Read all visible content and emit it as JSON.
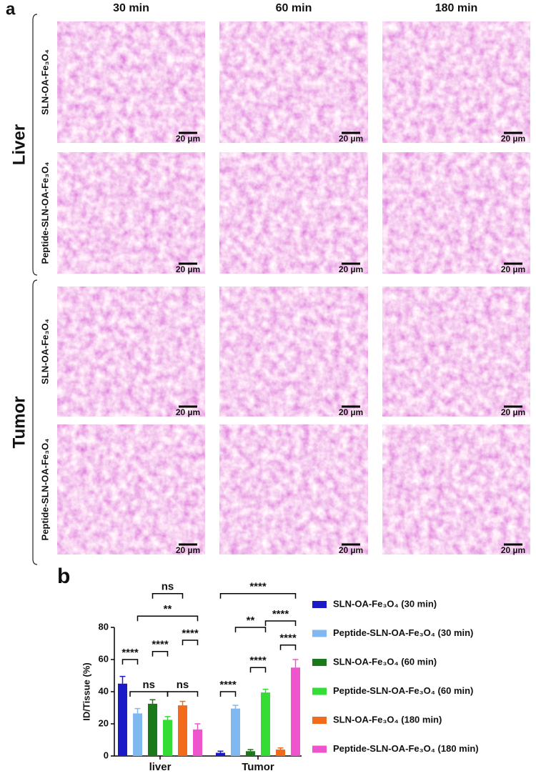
{
  "panel_a": {
    "label": "a",
    "columns": [
      "30 min",
      "60 min",
      "180 min"
    ],
    "groups": [
      "Liver",
      "Tumor"
    ],
    "rows": [
      "SLN-OA-Fe₃O₄",
      "Peptide-SLN-OA-Fe₃O₄",
      "SLN-OA-Fe₃O₄",
      "Peptide-SLN-OA-Fe₃O₄"
    ],
    "scale_bar": "20 µm"
  },
  "chart_data": {
    "type": "bar",
    "panel_label": "b",
    "y_label": "ID/Tissue (%)",
    "categories": [
      "liver",
      "Tumor"
    ],
    "ylim": [
      0,
      80
    ],
    "yticks": [
      0,
      20,
      40,
      60,
      80
    ],
    "grid": false,
    "legend": "right",
    "series": [
      {
        "name": "SLN-OA-Fe₃O₄ (30 min)",
        "color": "#1a1ac8",
        "values": [
          45,
          2
        ],
        "errors": [
          4.5,
          1
        ]
      },
      {
        "name": "Peptide-SLN-OA-Fe₃O₄ (30 min)",
        "color": "#80b8f0",
        "values": [
          26.5,
          29.5
        ],
        "errors": [
          3,
          2
        ]
      },
      {
        "name": "SLN-OA-Fe₃O₄ (60 min)",
        "color": "#1a7a1a",
        "values": [
          32.5,
          3
        ],
        "errors": [
          2.5,
          1
        ]
      },
      {
        "name": "Peptide-SLN-OA-Fe₃O₄ (60 min)",
        "color": "#33dd33",
        "values": [
          22.5,
          39.5
        ],
        "errors": [
          2,
          2
        ]
      },
      {
        "name": "SLN-OA-Fe₃O₄ (180 min)",
        "color": "#f26a1a",
        "values": [
          31.5,
          4
        ],
        "errors": [
          2.5,
          1
        ]
      },
      {
        "name": "Peptide-SLN-OA-Fe₃O₄ (180 min)",
        "color": "#ee55cc",
        "values": [
          16.5,
          55
        ],
        "errors": [
          3.5,
          5
        ]
      }
    ],
    "annotations": [
      "****",
      "****",
      "****",
      "ns",
      "ns",
      "**",
      "ns",
      "****",
      "****",
      "****",
      "**",
      "****",
      "****"
    ]
  }
}
